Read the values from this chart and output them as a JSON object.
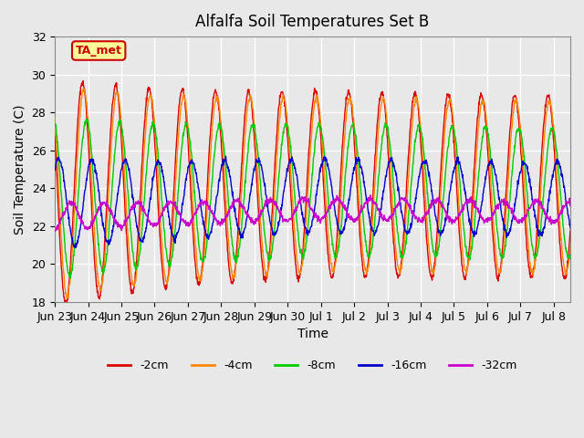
{
  "title": "Alfalfa Soil Temperatures Set B",
  "xlabel": "Time",
  "ylabel": "Soil Temperature (C)",
  "ylim": [
    18,
    32
  ],
  "xlim": [
    0,
    15.5
  ],
  "background_color": "#e8e8e8",
  "plot_bg_color": "#e8e8e8",
  "grid_color": "white",
  "series_order": [
    "-2cm",
    "-4cm",
    "-8cm",
    "-16cm",
    "-32cm"
  ],
  "series": {
    "-2cm": {
      "color": "#dd0000"
    },
    "-4cm": {
      "color": "#ff8800"
    },
    "-8cm": {
      "color": "#00cc00"
    },
    "-16cm": {
      "color": "#0000cc"
    },
    "-32cm": {
      "color": "#cc00cc"
    }
  },
  "amplitudes": {
    "-2cm": 4.8,
    "-4cm": 4.5,
    "-8cm": 3.4,
    "-16cm": 1.9,
    "-32cm": 0.55
  },
  "phase_delays": {
    "-2cm": 0.0,
    "-4cm": 0.04,
    "-8cm": 0.12,
    "-16cm": 0.28,
    "-32cm": 0.65
  },
  "mean_temps": {
    "-2cm": 23.8,
    "-4cm": 23.8,
    "-8cm": 23.5,
    "-16cm": 23.2,
    "-32cm": 22.5
  },
  "x_tick_labels": [
    "Jun 23",
    "Jun 24",
    "Jun 25",
    "Jun 26",
    "Jun 27",
    "Jun 28",
    "Jun 29",
    "Jun 30",
    "Jul 1",
    "Jul 2",
    "Jul 3",
    "Jul 4",
    "Jul 5",
    "Jul 6",
    "Jul 7",
    "Jul 8"
  ],
  "x_tick_positions": [
    0,
    1,
    2,
    3,
    4,
    5,
    6,
    7,
    8,
    9,
    10,
    11,
    12,
    13,
    14,
    15
  ],
  "y_ticks": [
    18,
    20,
    22,
    24,
    26,
    28,
    30,
    32
  ],
  "annotation_text": "TA_met",
  "annotation_bg": "#ffff99",
  "annotation_border": "#cc0000",
  "n_points": 1500,
  "linewidth": 1.0
}
